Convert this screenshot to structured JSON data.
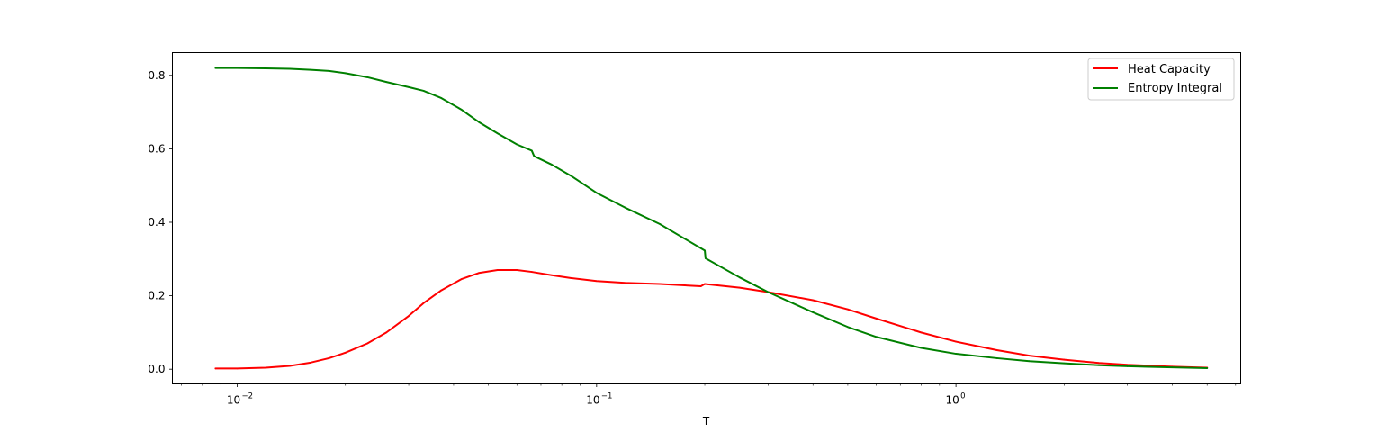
{
  "chart_data": {
    "type": "line",
    "title": "",
    "xlabel": "T",
    "ylabel": "",
    "xscale": "log",
    "xlim": [
      0.0066,
      6.2
    ],
    "ylim": [
      -0.04,
      0.862
    ],
    "grid": false,
    "legend_position": "top-right",
    "x_ticks": [
      {
        "value": 0.01,
        "base": "10",
        "exp": "−2"
      },
      {
        "value": 0.1,
        "base": "10",
        "exp": "−1"
      },
      {
        "value": 1,
        "base": "10",
        "exp": "0"
      }
    ],
    "y_ticks": [
      {
        "value": 0.0,
        "label": "0.0"
      },
      {
        "value": 0.2,
        "label": "0.2"
      },
      {
        "value": 0.4,
        "label": "0.4"
      },
      {
        "value": 0.6,
        "label": "0.6"
      },
      {
        "value": 0.8,
        "label": "0.8"
      }
    ],
    "series": [
      {
        "name": "Heat Capacity",
        "color": "#ff0000",
        "x": [
          0.0087,
          0.01,
          0.012,
          0.014,
          0.016,
          0.018,
          0.02,
          0.023,
          0.026,
          0.03,
          0.033,
          0.037,
          0.042,
          0.047,
          0.053,
          0.06,
          0.066,
          0.075,
          0.085,
          0.1,
          0.12,
          0.15,
          0.195,
          0.2,
          0.25,
          0.3,
          0.4,
          0.5,
          0.6,
          0.8,
          1.0,
          1.3,
          1.6,
          2.0,
          2.5,
          3.0,
          4.0,
          5.0
        ],
        "y": [
          0.002,
          0.002,
          0.004,
          0.009,
          0.018,
          0.03,
          0.045,
          0.07,
          0.1,
          0.145,
          0.18,
          0.215,
          0.245,
          0.262,
          0.27,
          0.27,
          0.265,
          0.256,
          0.248,
          0.24,
          0.235,
          0.232,
          0.226,
          0.232,
          0.222,
          0.21,
          0.188,
          0.163,
          0.138,
          0.1,
          0.075,
          0.052,
          0.037,
          0.026,
          0.017,
          0.012,
          0.007,
          0.004
        ]
      },
      {
        "name": "Entropy Integral",
        "color": "#008000",
        "x": [
          0.0087,
          0.01,
          0.012,
          0.014,
          0.016,
          0.018,
          0.02,
          0.023,
          0.026,
          0.03,
          0.033,
          0.037,
          0.042,
          0.047,
          0.053,
          0.06,
          0.066,
          0.067,
          0.075,
          0.085,
          0.1,
          0.12,
          0.15,
          0.2,
          0.201,
          0.25,
          0.3,
          0.4,
          0.5,
          0.6,
          0.8,
          1.0,
          1.3,
          1.6,
          2.0,
          2.5,
          3.0,
          4.0,
          5.0
        ],
        "y": [
          0.82,
          0.82,
          0.819,
          0.818,
          0.815,
          0.812,
          0.806,
          0.795,
          0.782,
          0.768,
          0.758,
          0.738,
          0.707,
          0.673,
          0.642,
          0.612,
          0.595,
          0.58,
          0.557,
          0.526,
          0.48,
          0.44,
          0.395,
          0.323,
          0.302,
          0.25,
          0.21,
          0.155,
          0.115,
          0.088,
          0.058,
          0.042,
          0.03,
          0.022,
          0.016,
          0.011,
          0.008,
          0.005,
          0.003
        ]
      }
    ]
  }
}
